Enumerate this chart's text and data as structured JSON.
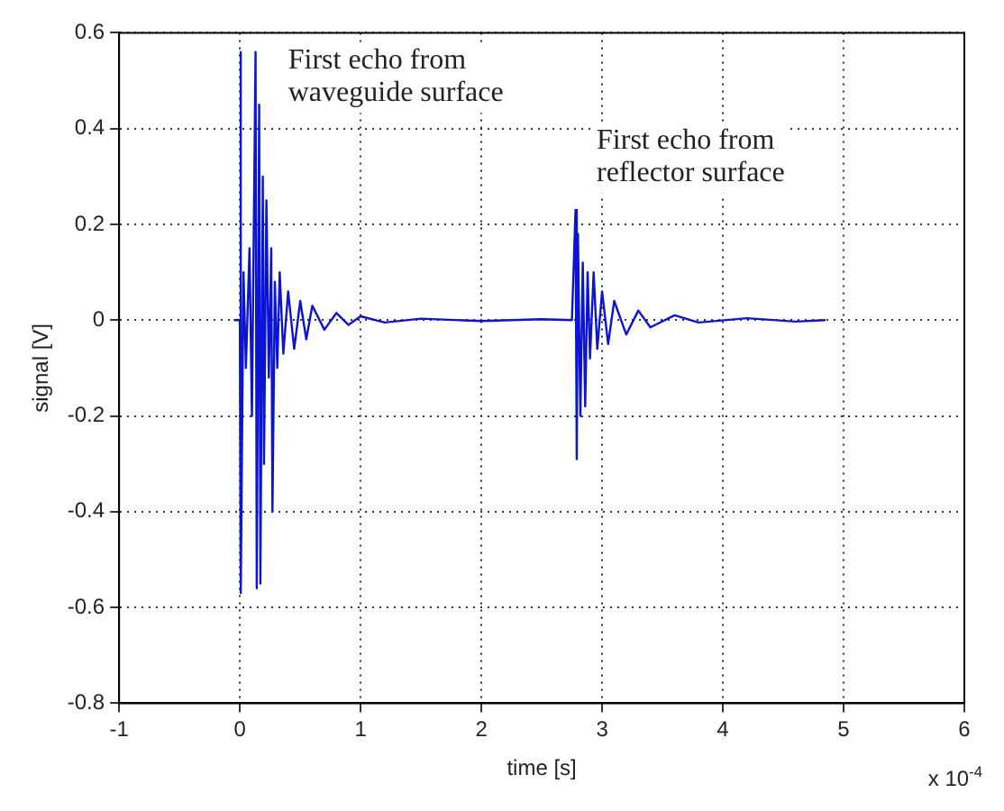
{
  "chart_data": {
    "type": "line",
    "xlabel": "time [s]",
    "ylabel": "signal [V]",
    "x": [
      -0.05,
      0,
      0.005,
      0.01,
      0.03,
      0.05,
      0.08,
      0.1,
      0.13,
      0.14,
      0.16,
      0.17,
      0.19,
      0.2,
      0.22,
      0.24,
      0.26,
      0.27,
      0.29,
      0.31,
      0.33,
      0.36,
      0.4,
      0.45,
      0.5,
      0.55,
      0.6,
      0.7,
      0.8,
      0.9,
      1.0,
      1.2,
      1.5,
      2.0,
      2.5,
      2.75,
      2.78,
      2.79,
      2.8,
      2.82,
      2.84,
      2.86,
      2.88,
      2.9,
      2.93,
      2.96,
      3.0,
      3.05,
      3.1,
      3.2,
      3.3,
      3.4,
      3.6,
      3.8,
      4.2,
      4.6,
      4.85
    ],
    "series": [
      {
        "color": "#0a14d2",
        "values": [
          0,
          0,
          0.56,
          -0.57,
          0.1,
          -0.1,
          0.15,
          -0.2,
          0.56,
          -0.56,
          0.45,
          -0.55,
          0.3,
          -0.3,
          0.25,
          -0.12,
          0.15,
          -0.4,
          0.08,
          -0.1,
          0.1,
          -0.07,
          0.06,
          -0.06,
          0.04,
          -0.04,
          0.03,
          -0.02,
          0.015,
          -0.01,
          0.008,
          -0.005,
          0.003,
          -0.002,
          0.002,
          0,
          0.23,
          -0.29,
          0.18,
          -0.2,
          0.12,
          -0.18,
          0.1,
          -0.08,
          0.1,
          -0.06,
          0.06,
          -0.05,
          0.04,
          -0.03,
          0.02,
          -0.015,
          0.01,
          -0.005,
          0.004,
          -0.003,
          0
        ]
      }
    ],
    "xlim": [
      -1,
      6
    ],
    "xticks": [
      -1,
      0,
      1,
      2,
      3,
      4,
      5,
      6
    ],
    "ylim": [
      -0.8,
      0.6
    ],
    "yticks": [
      -0.8,
      -0.6,
      -0.4,
      -0.2,
      0,
      0.2,
      0.4,
      0.6
    ],
    "grid": true,
    "marker": "none",
    "line_style": "solid",
    "legend": false,
    "annotations": [
      "First echo from\nwaveguide surface",
      "First echo from\nreflector surface",
      "x 10$^{-4}$"
    ]
  }
}
